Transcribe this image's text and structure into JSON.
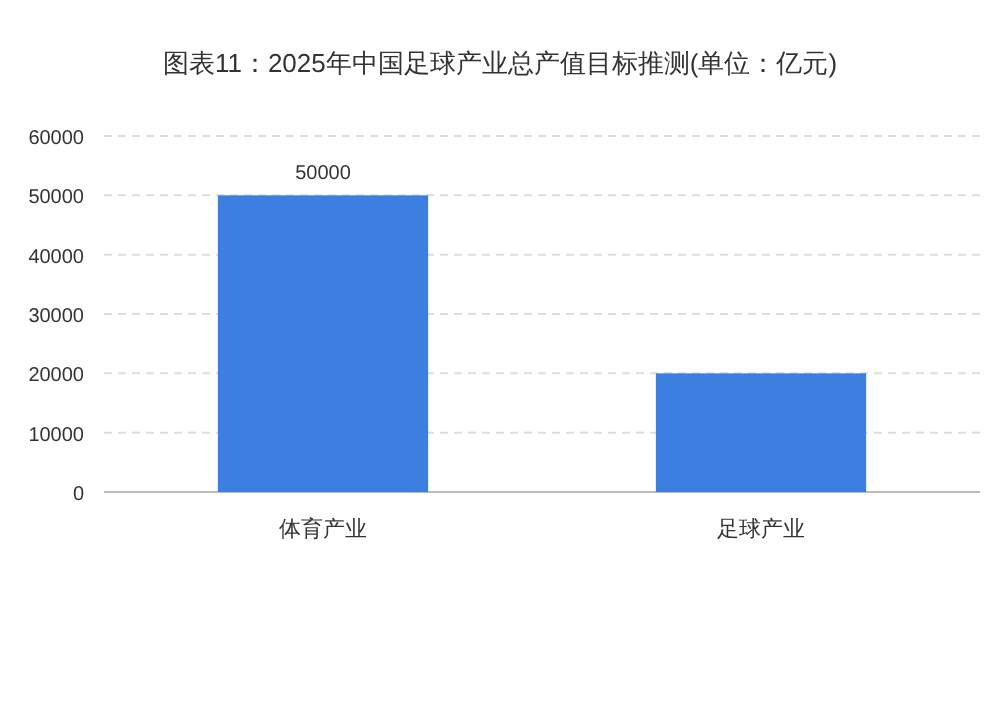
{
  "chart_data": {
    "type": "bar",
    "title": "图表11：2025年中国足球产业总产值目标推测(单位：亿元)",
    "categories": [
      "体育产业",
      "足球产业"
    ],
    "values": [
      50000,
      20000
    ],
    "value_labels": [
      "50000",
      null
    ],
    "color": "#3c7fe0",
    "ylim": [
      0,
      60000
    ],
    "yticks": [
      0,
      10000,
      20000,
      30000,
      40000,
      50000,
      60000
    ],
    "grid": "y"
  }
}
